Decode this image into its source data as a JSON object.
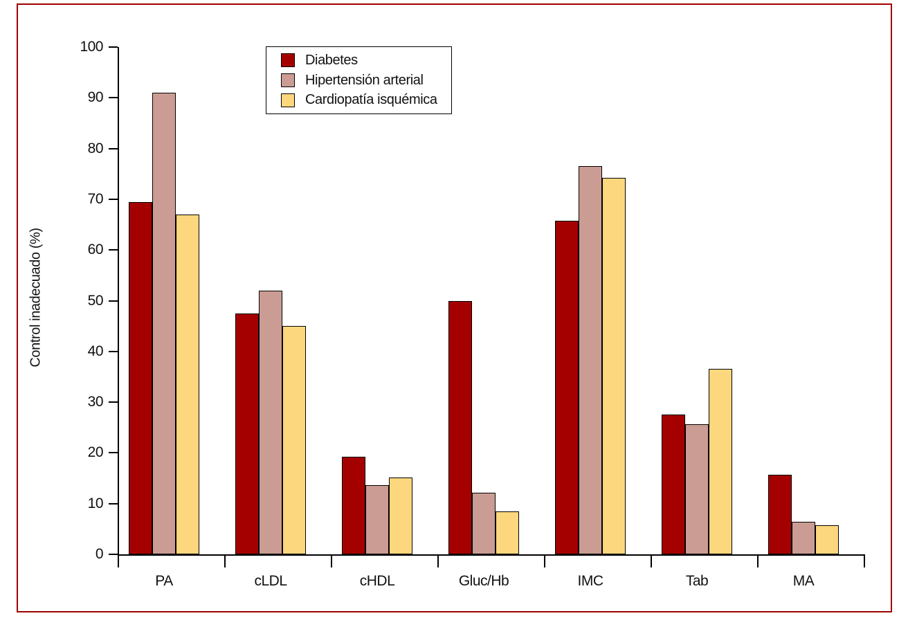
{
  "chart_data": {
    "type": "bar",
    "title": "",
    "xlabel": "",
    "ylabel": "Control inadecuado (%)",
    "ylim": [
      0,
      100
    ],
    "ytick_step": 10,
    "grid": false,
    "legend_position": "top-inside",
    "frame_color": "#A00000",
    "axis_color": "#000000",
    "categories": [
      "PA",
      "cLDL",
      "cHDL",
      "Gluc/Hb",
      "IMC",
      "Tab",
      "MA"
    ],
    "series": [
      {
        "name": "Diabetes",
        "color": "#A50000",
        "values": [
          69.5,
          47.5,
          19.3,
          50.0,
          65.7,
          27.5,
          15.7
        ]
      },
      {
        "name": "Hipertensión arterial",
        "color": "#CB9C94",
        "values": [
          91.0,
          52.0,
          13.7,
          12.2,
          76.5,
          25.7,
          6.4
        ]
      },
      {
        "name": "Cardiopatía isquémica",
        "color": "#FDD77E",
        "values": [
          67.0,
          45.0,
          15.2,
          8.4,
          74.2,
          36.6,
          5.7
        ]
      }
    ]
  }
}
